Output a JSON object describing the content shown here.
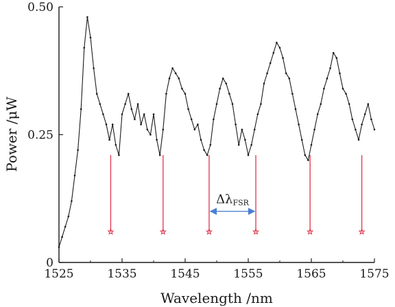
{
  "chart_data": {
    "type": "line",
    "xlabel": "Wavelength /nm",
    "ylabel": "Power /μW",
    "xlim": [
      1525,
      1575
    ],
    "ylim": [
      0,
      0.5
    ],
    "x_ticks": [
      "1525",
      "1535",
      "1545",
      "1555",
      "1565",
      "1575"
    ],
    "y_ticks": [
      "0",
      "0.25",
      "0.50"
    ],
    "grid": false,
    "legend": "none",
    "series": [
      {
        "style": "black line with dot markers",
        "color": "#1a1a1a",
        "x": [
          1525.0,
          1525.5,
          1526.0,
          1526.5,
          1527.0,
          1527.5,
          1528.0,
          1528.5,
          1529.0,
          1529.5,
          1530.0,
          1530.5,
          1531.0,
          1531.5,
          1532.0,
          1532.5,
          1533.0,
          1533.5,
          1534.0,
          1534.5,
          1535.0,
          1535.5,
          1536.0,
          1536.5,
          1537.0,
          1537.5,
          1538.0,
          1538.5,
          1539.0,
          1539.5,
          1540.0,
          1540.5,
          1541.0,
          1541.5,
          1542.0,
          1542.5,
          1543.0,
          1543.5,
          1544.0,
          1544.5,
          1545.0,
          1545.5,
          1546.0,
          1546.5,
          1547.0,
          1547.5,
          1548.0,
          1548.5,
          1549.0,
          1549.5,
          1550.0,
          1550.5,
          1551.0,
          1551.5,
          1552.0,
          1552.5,
          1553.0,
          1553.5,
          1554.0,
          1554.5,
          1555.0,
          1555.5,
          1556.0,
          1556.5,
          1557.0,
          1557.5,
          1558.0,
          1558.5,
          1559.0,
          1559.5,
          1560.0,
          1560.5,
          1561.0,
          1561.5,
          1562.0,
          1562.5,
          1563.0,
          1563.5,
          1564.0,
          1564.5,
          1565.0,
          1565.5,
          1566.0,
          1566.5,
          1567.0,
          1567.5,
          1568.0,
          1568.5,
          1569.0,
          1569.5,
          1570.0,
          1570.5,
          1571.0,
          1571.5,
          1572.0,
          1572.5,
          1573.0,
          1573.5,
          1574.0,
          1574.5,
          1575.0
        ],
        "y": [
          0.03,
          0.05,
          0.07,
          0.09,
          0.12,
          0.17,
          0.22,
          0.3,
          0.42,
          0.48,
          0.44,
          0.38,
          0.33,
          0.31,
          0.29,
          0.27,
          0.24,
          0.27,
          0.23,
          0.21,
          0.29,
          0.31,
          0.33,
          0.3,
          0.28,
          0.31,
          0.27,
          0.29,
          0.26,
          0.25,
          0.29,
          0.24,
          0.21,
          0.26,
          0.33,
          0.36,
          0.38,
          0.37,
          0.36,
          0.34,
          0.33,
          0.3,
          0.28,
          0.26,
          0.27,
          0.24,
          0.22,
          0.21,
          0.23,
          0.28,
          0.31,
          0.34,
          0.36,
          0.35,
          0.33,
          0.31,
          0.27,
          0.23,
          0.26,
          0.24,
          0.21,
          0.23,
          0.26,
          0.29,
          0.31,
          0.35,
          0.37,
          0.39,
          0.41,
          0.43,
          0.42,
          0.4,
          0.37,
          0.36,
          0.33,
          0.3,
          0.27,
          0.24,
          0.21,
          0.2,
          0.23,
          0.26,
          0.29,
          0.31,
          0.34,
          0.36,
          0.38,
          0.41,
          0.4,
          0.37,
          0.34,
          0.33,
          0.31,
          0.28,
          0.26,
          0.24,
          0.27,
          0.29,
          0.31,
          0.28,
          0.26
        ]
      }
    ],
    "markers": {
      "color": "#e0334a",
      "symbol": "star",
      "x": [
        1533.2,
        1541.5,
        1548.8,
        1556.2,
        1564.8,
        1573.0
      ],
      "y_top": 0.21,
      "y_bottom": 0.06
    },
    "annotation": {
      "label_main": "Δλ",
      "label_sub": "FSR",
      "arrow_color": "#4a7fd1",
      "x_from": 1548.8,
      "x_to": 1556.2,
      "y": 0.1
    }
  }
}
